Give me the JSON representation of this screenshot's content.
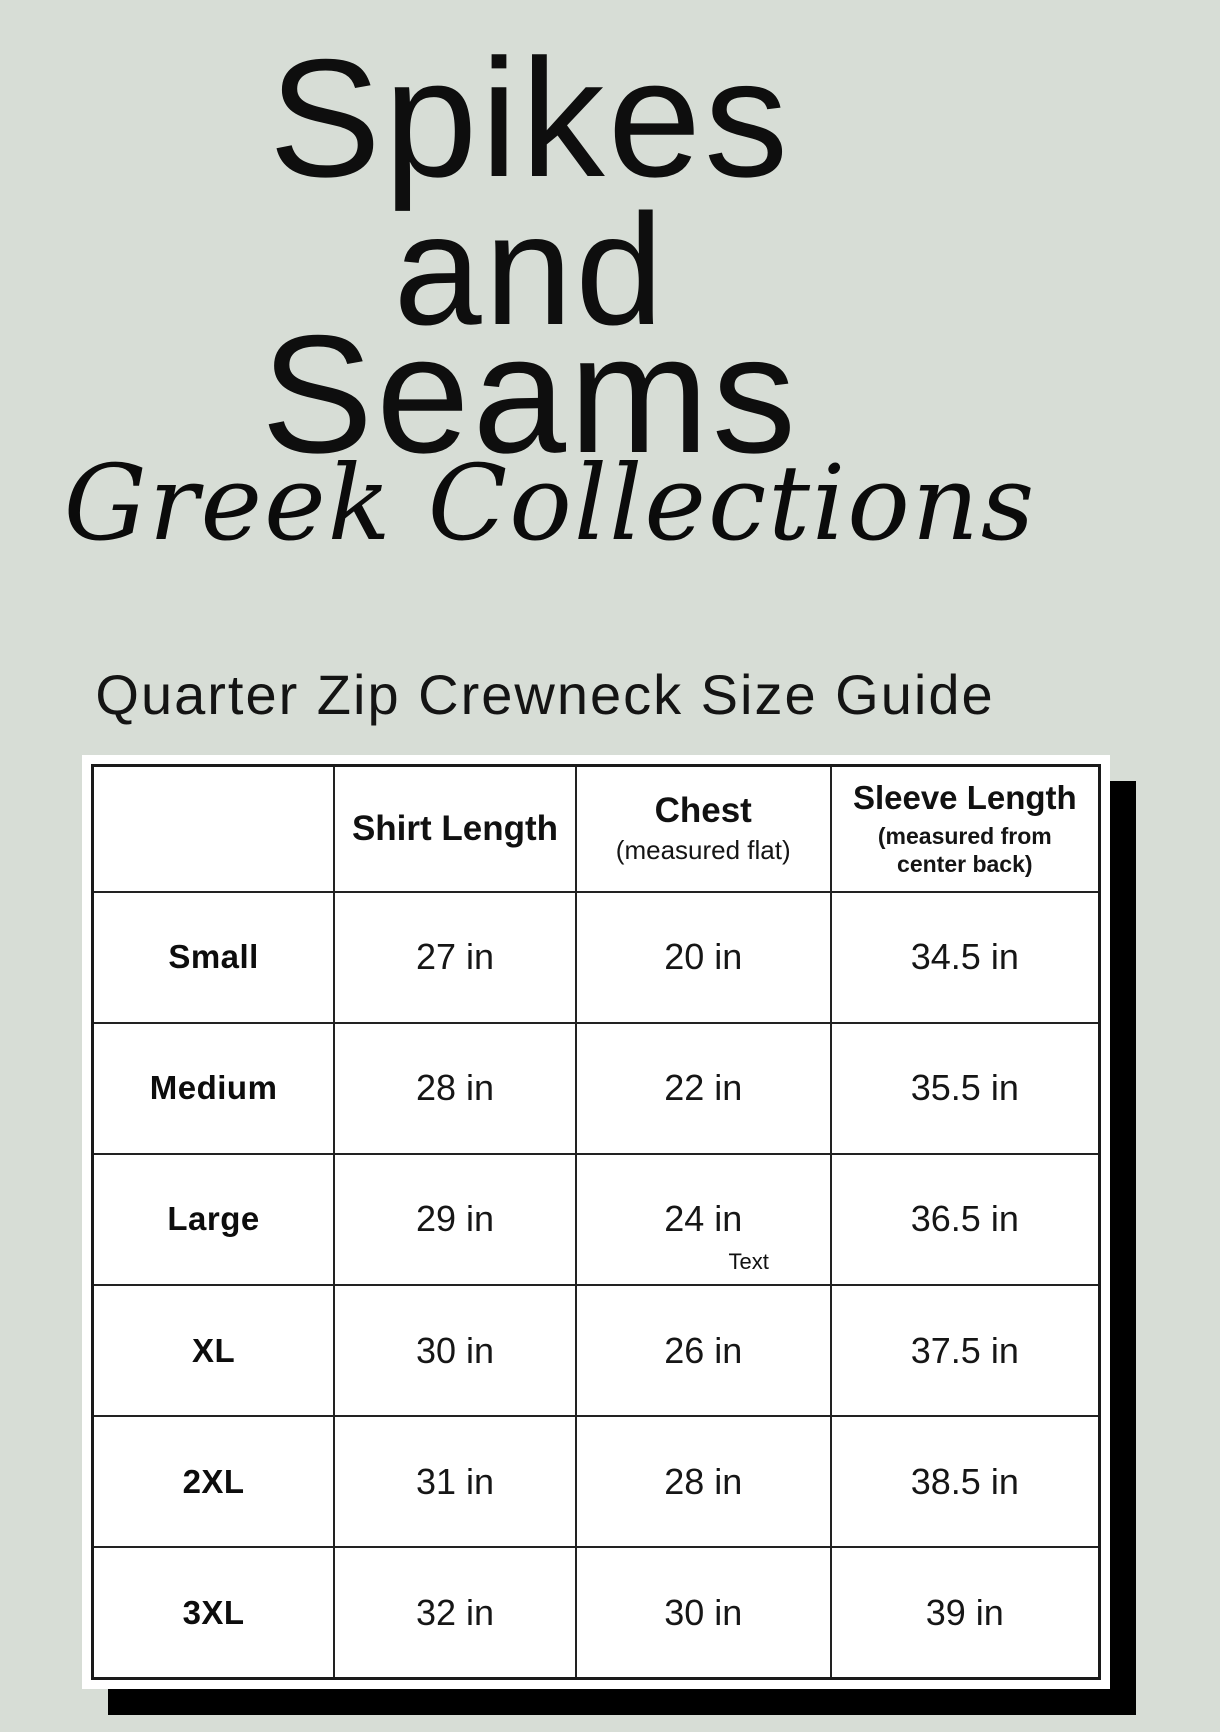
{
  "colors": {
    "background": "#d7ddd6",
    "card": "#ffffff",
    "shadow": "#000000",
    "text": "#0e0e0e"
  },
  "brand": {
    "title_line1": "Spikes",
    "title_line2": "and",
    "title_line3": "Seams",
    "script_subtitle": "Greek Collections"
  },
  "heading": "Quarter Zip Crewneck Size Guide",
  "size_table": {
    "columns": [
      {
        "label": "",
        "sublabel": ""
      },
      {
        "label": "Shirt Length",
        "sublabel": ""
      },
      {
        "label": "Chest",
        "sublabel": "(measured flat)"
      },
      {
        "label": "Sleeve Length",
        "sublabel": "(measured from center back)"
      }
    ],
    "rows": [
      {
        "size": "Small",
        "shirt_length": "27 in",
        "chest": "20 in",
        "sleeve_length": "34.5 in"
      },
      {
        "size": "Medium",
        "shirt_length": "28 in",
        "chest": "22 in",
        "sleeve_length": "35.5 in"
      },
      {
        "size": "Large",
        "shirt_length": "29 in",
        "chest": "24 in",
        "sleeve_length": "36.5 in",
        "artifact": "Text"
      },
      {
        "size": "XL",
        "shirt_length": "30 in",
        "chest": "26 in",
        "sleeve_length": "37.5 in"
      },
      {
        "size": "2XL",
        "shirt_length": "31 in",
        "chest": "28 in",
        "sleeve_length": "38.5 in"
      },
      {
        "size": "3XL",
        "shirt_length": "32 in",
        "chest": "30 in",
        "sleeve_length": "39 in"
      }
    ]
  }
}
